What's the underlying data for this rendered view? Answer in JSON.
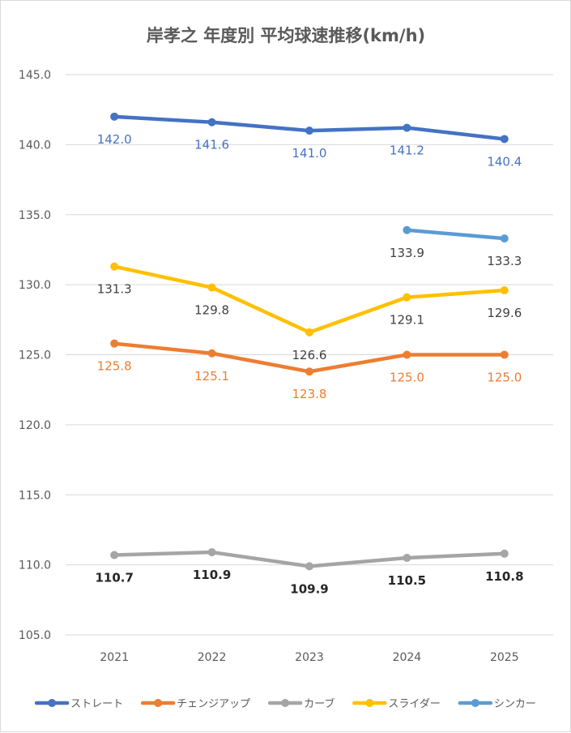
{
  "chart_data": {
    "type": "line",
    "title": "岸孝之 年度別 平均球速推移(km/h)",
    "categories": [
      "2021",
      "2022",
      "2023",
      "2024",
      "2025"
    ],
    "ylim": [
      105,
      145
    ],
    "yticks": [
      105,
      110,
      115,
      120,
      125,
      130,
      135,
      140,
      145
    ],
    "grid": true,
    "legend_position": "bottom",
    "series": [
      {
        "name": "ストレート",
        "color": "#4472c4",
        "values": [
          142.0,
          141.6,
          141.0,
          141.2,
          140.4
        ],
        "labels": [
          "142.0",
          "141.6",
          "141.0",
          "141.2",
          "140.4"
        ],
        "label_position": "below",
        "label_bold": false
      },
      {
        "name": "チェンジアップ",
        "color": "#ed7d31",
        "values": [
          125.8,
          125.1,
          123.8,
          125.0,
          125.0
        ],
        "labels": [
          "125.8",
          "125.1",
          "123.8",
          "125.0",
          "125.0"
        ],
        "label_position": "below",
        "label_bold": false
      },
      {
        "name": "カーブ",
        "color": "#a5a5a5",
        "values": [
          110.7,
          110.9,
          109.9,
          110.5,
          110.8
        ],
        "labels": [
          "110.7",
          "110.9",
          "109.9",
          "110.5",
          "110.8"
        ],
        "label_position": "below",
        "label_bold": true
      },
      {
        "name": "スライダー",
        "color": "#ffc000",
        "values": [
          131.3,
          129.8,
          126.6,
          129.1,
          129.6
        ],
        "labels": [
          "131.3",
          "129.8",
          "126.6",
          "129.1",
          "129.6"
        ],
        "label_position": "below",
        "label_bold": false
      },
      {
        "name": "シンカー",
        "color": "#5b9bd5",
        "values": [
          null,
          null,
          null,
          133.9,
          133.3
        ],
        "labels": [
          null,
          null,
          null,
          "133.9",
          "133.3"
        ],
        "label_position": "below",
        "label_bold": false
      }
    ]
  },
  "label_colors": {
    "ストレート": "#4472c4",
    "チェンジアップ": "#ed7d31",
    "カーブ": "#262626",
    "スライダー": "#404040",
    "シンカー": "#404040"
  }
}
